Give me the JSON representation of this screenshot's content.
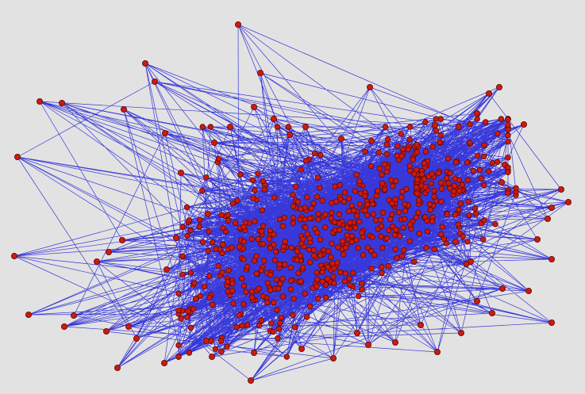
{
  "graph": {
    "node_fill": "#cc1a10",
    "node_stroke": "#5a0a06",
    "edge_color": "#1a1ad8",
    "background": "#e2e2e2"
  }
}
